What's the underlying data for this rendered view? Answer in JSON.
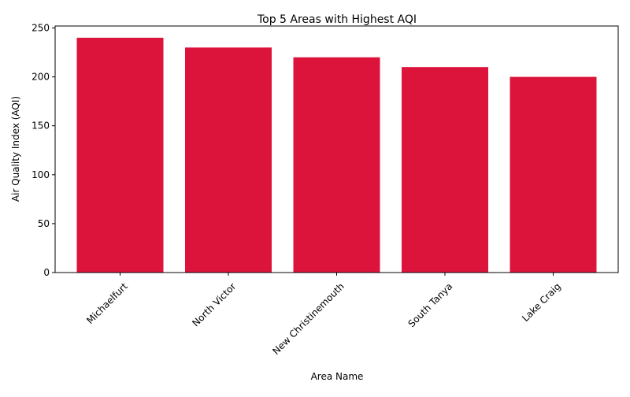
{
  "chart_data": {
    "type": "bar",
    "title": "Top 5 Areas with Highest AQI",
    "xlabel": "Area Name",
    "ylabel": "Air Quality Index (AQI)",
    "categories": [
      "Michaelfurt",
      "North Victor",
      "New Christinemouth",
      "South Tanya",
      "Lake Craig"
    ],
    "values": [
      240,
      230,
      220,
      210,
      200
    ],
    "ylim": [
      0,
      252
    ],
    "yticks": [
      "0",
      "50",
      "100",
      "150",
      "200",
      "250"
    ],
    "bar_color": "#dc143c",
    "grid": false,
    "legend": "none"
  }
}
